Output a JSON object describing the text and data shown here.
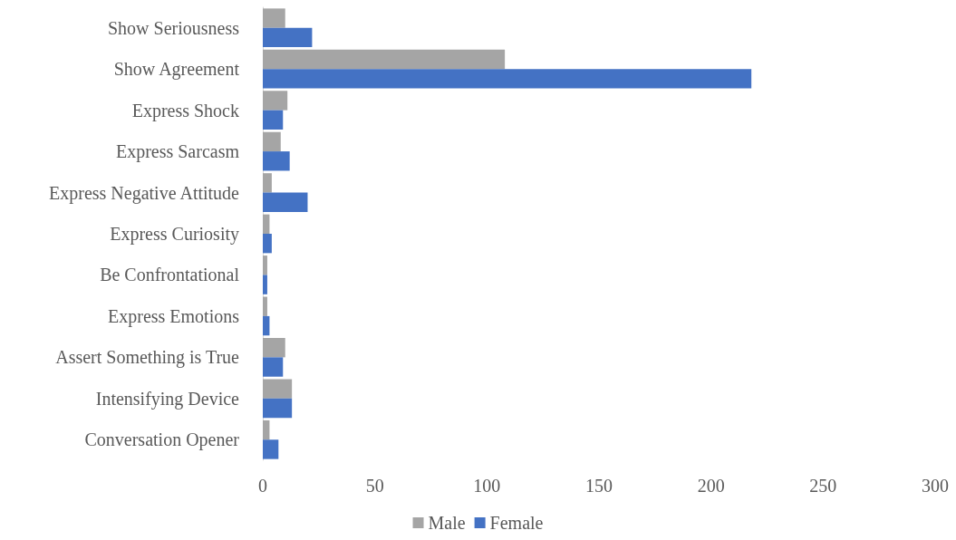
{
  "chart_data": {
    "type": "bar",
    "orientation": "horizontal",
    "categories": [
      "Show Seriousness",
      "Show Agreement",
      "Express Shock",
      "Express Sarcasm",
      "Express Negative Attitude",
      "Express Curiosity",
      "Be Confrontational",
      "Express Emotions",
      "Assert Something is True",
      "Intensifying Device",
      "Conversation Opener"
    ],
    "series": [
      {
        "name": "Male",
        "color": "#a5a5a5",
        "values": [
          10,
          108,
          11,
          8,
          4,
          3,
          2,
          2,
          10,
          13,
          3
        ]
      },
      {
        "name": "Female",
        "color": "#4472c4",
        "values": [
          22,
          218,
          9,
          12,
          20,
          4,
          2,
          3,
          9,
          13,
          7
        ]
      }
    ],
    "xlim": [
      0,
      300
    ],
    "xticks": [
      0,
      50,
      100,
      150,
      200,
      250,
      300
    ],
    "grid": false,
    "legend": "bottom"
  }
}
